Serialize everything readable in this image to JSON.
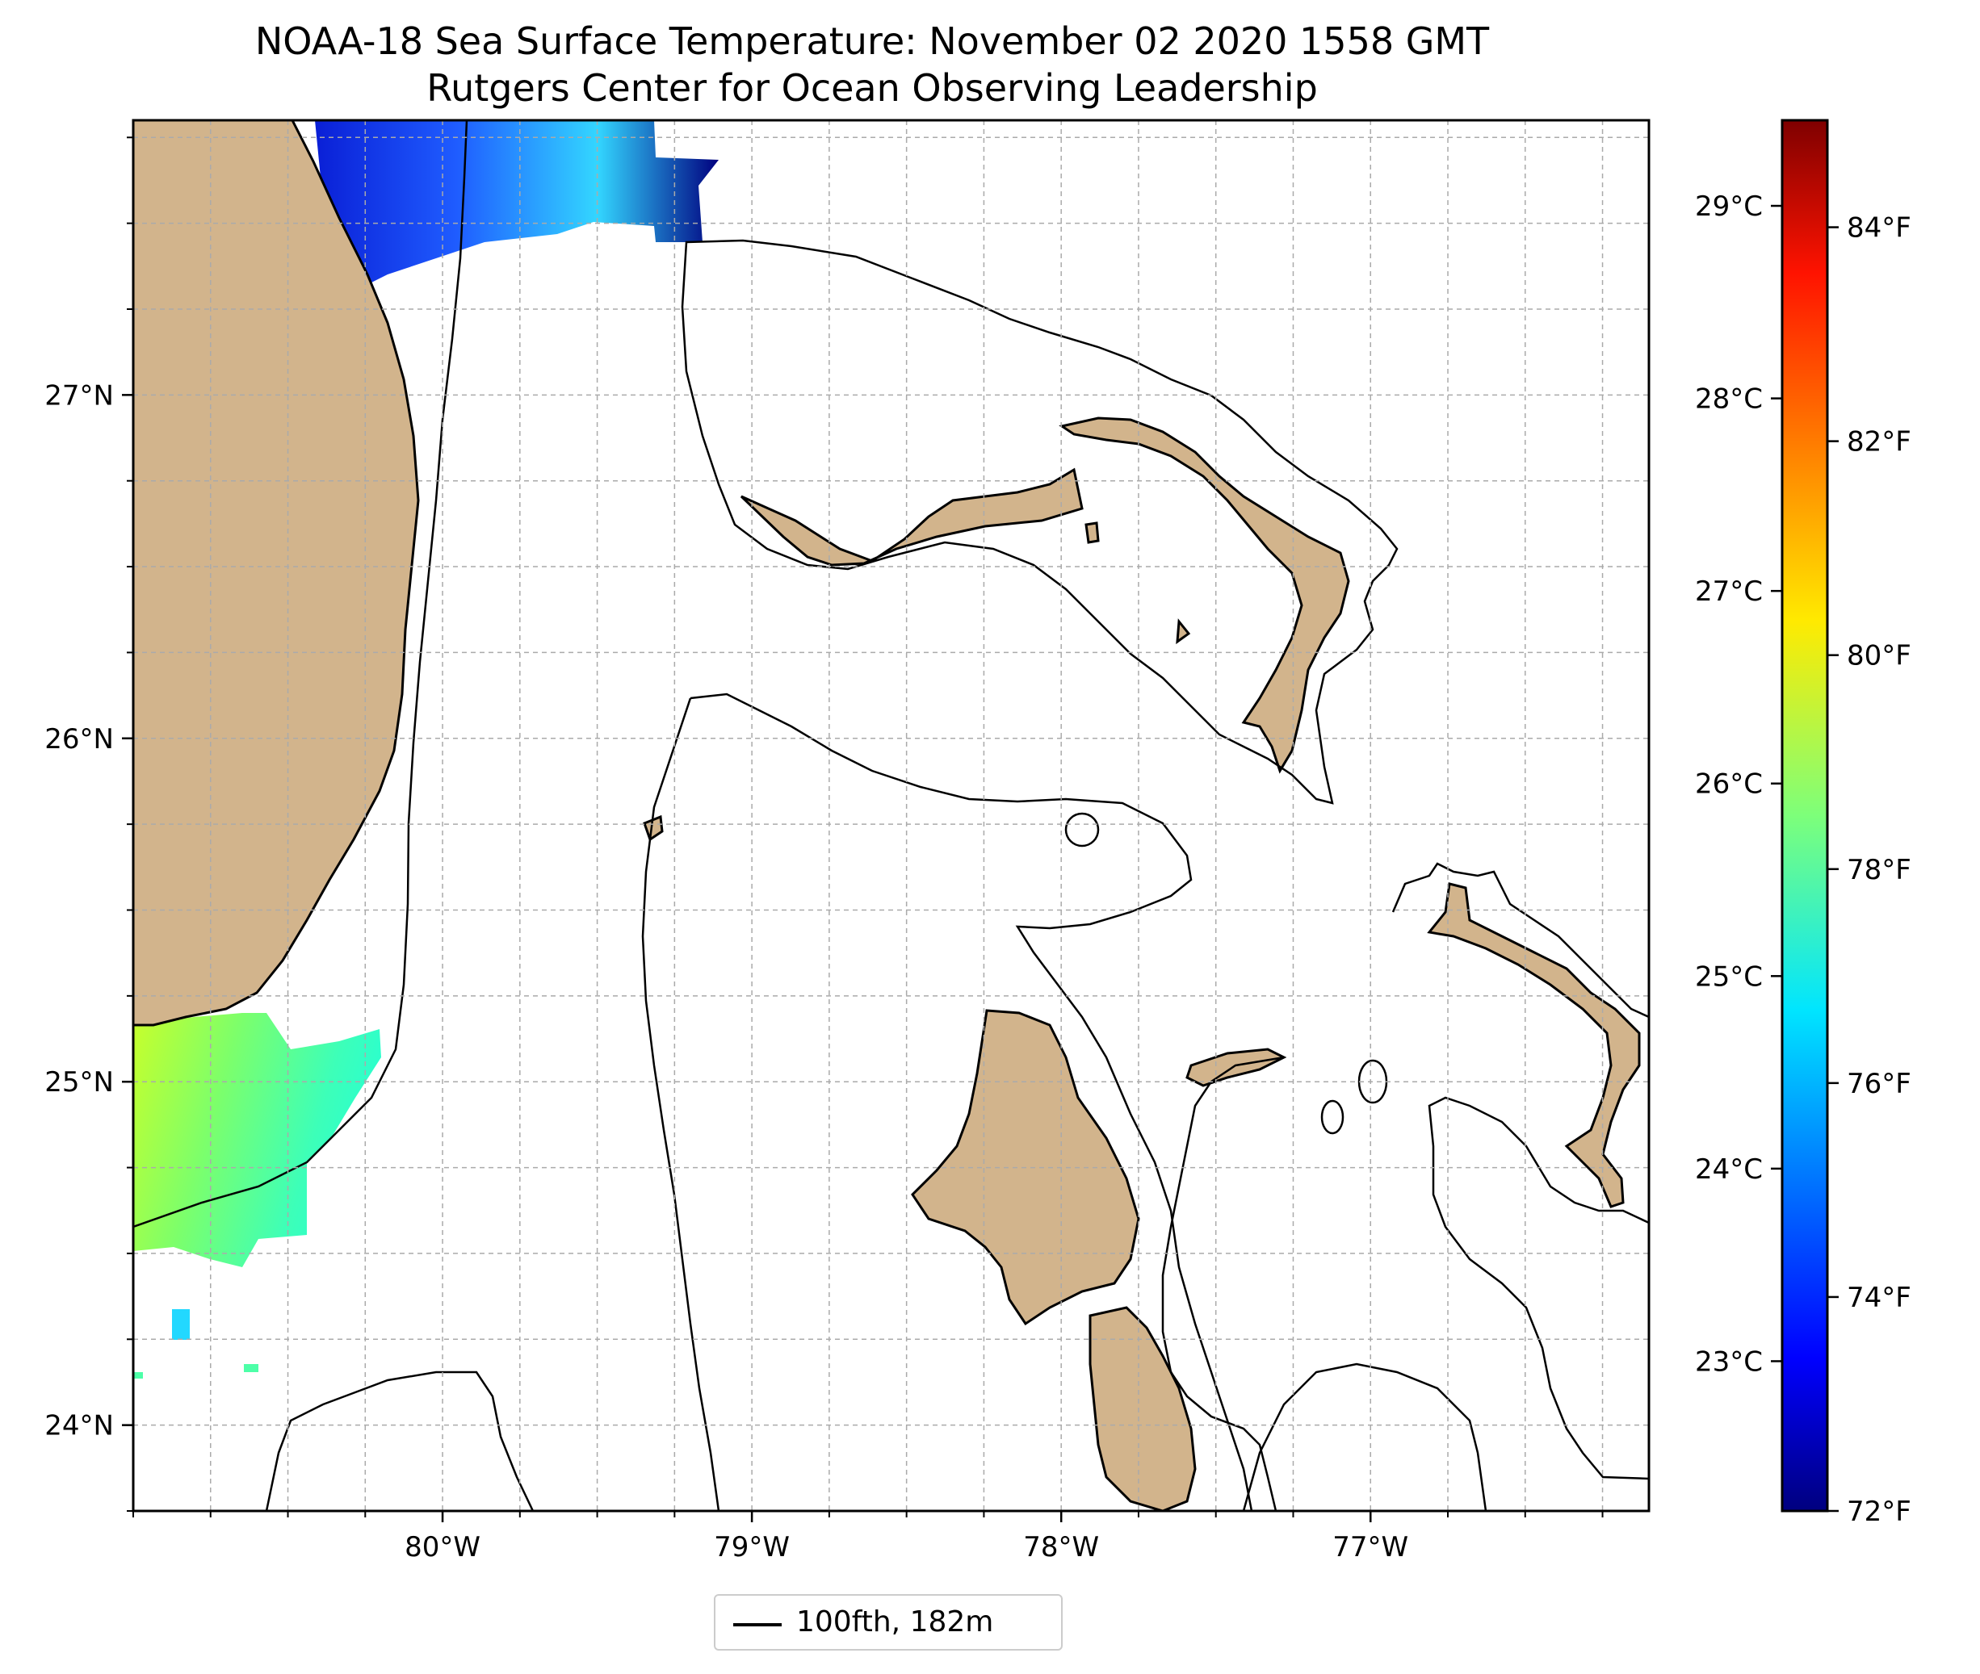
{
  "title": {
    "line1": "NOAA-18 Sea Surface Temperature: November 02 2020 1558 GMT",
    "line2": "Rutgers Center for Ocean Observing Leadership"
  },
  "map": {
    "lon_range": [
      -81.0,
      -76.1
    ],
    "lat_range": [
      23.75,
      27.8
    ],
    "lon_ticks": [
      {
        "value": -80,
        "label": "80°W"
      },
      {
        "value": -79,
        "label": "79°W"
      },
      {
        "value": -78,
        "label": "78°W"
      },
      {
        "value": -77,
        "label": "77°W"
      }
    ],
    "lat_ticks": [
      {
        "value": 24,
        "label": "24°N"
      },
      {
        "value": 25,
        "label": "25°N"
      },
      {
        "value": 26,
        "label": "26°N"
      },
      {
        "value": 27,
        "label": "27°N"
      }
    ],
    "gridlines": "dashed",
    "land_color": "#d2b48c",
    "ocean_color": "#ffffff"
  },
  "colorbar": {
    "colormap": "jet",
    "celsius_ticks": [
      {
        "value": 23,
        "label": "23°C"
      },
      {
        "value": 24,
        "label": "24°C"
      },
      {
        "value": 25,
        "label": "25°C"
      },
      {
        "value": 26,
        "label": "26°C"
      },
      {
        "value": 27,
        "label": "27°C"
      },
      {
        "value": 28,
        "label": "28°C"
      },
      {
        "value": 29,
        "label": "29°C"
      }
    ],
    "fahrenheit_ticks": [
      {
        "value": 72,
        "label": "72°F"
      },
      {
        "value": 74,
        "label": "74°F"
      },
      {
        "value": 76,
        "label": "76°F"
      },
      {
        "value": 78,
        "label": "78°F"
      },
      {
        "value": 80,
        "label": "80°F"
      },
      {
        "value": 82,
        "label": "82°F"
      },
      {
        "value": 84,
        "label": "84°F"
      }
    ],
    "f_range": [
      72,
      85
    ]
  },
  "legend": {
    "entry": "100fth, 182m",
    "placement": "bottom-center"
  }
}
